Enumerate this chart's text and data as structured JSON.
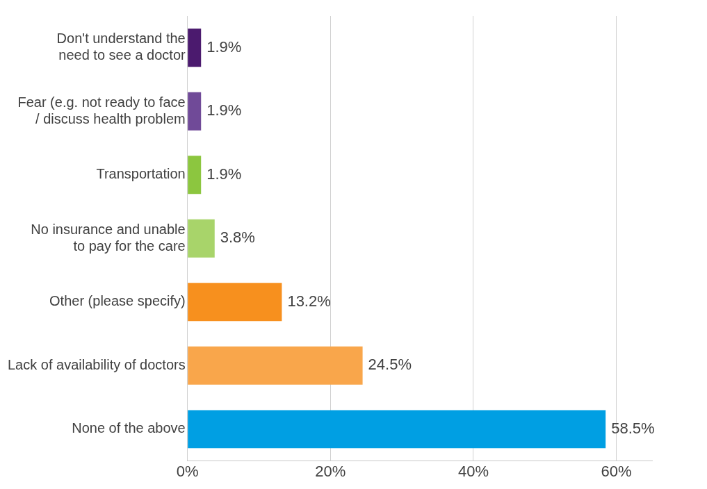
{
  "chart_data": {
    "type": "bar",
    "orientation": "horizontal",
    "categories": [
      "Don't understand the\nneed to see a doctor",
      "Fear (e.g. not ready to face\n/ discuss health problem",
      "Transportation",
      "No insurance and unable\nto pay for the care",
      "Other (please specify)",
      "Lack of availability of doctors",
      "None of the above"
    ],
    "values": [
      1.9,
      1.9,
      1.9,
      3.8,
      13.2,
      24.5,
      58.5
    ],
    "colors": [
      "#4b1a6e",
      "#704a98",
      "#8cc63f",
      "#a8d46a",
      "#f7901e",
      "#f9a64b",
      "#009fe3"
    ],
    "value_labels": [
      "1.9%",
      "1.9%",
      "1.9%",
      "3.8%",
      "13.2%",
      "24.5%",
      "58.5%"
    ],
    "xlim": [
      0,
      65
    ],
    "xticks": [
      {
        "value": 0,
        "label": "0%"
      },
      {
        "value": 20,
        "label": "20%"
      },
      {
        "value": 40,
        "label": "40%"
      },
      {
        "value": 60,
        "label": "60%"
      }
    ],
    "grid": "x"
  }
}
